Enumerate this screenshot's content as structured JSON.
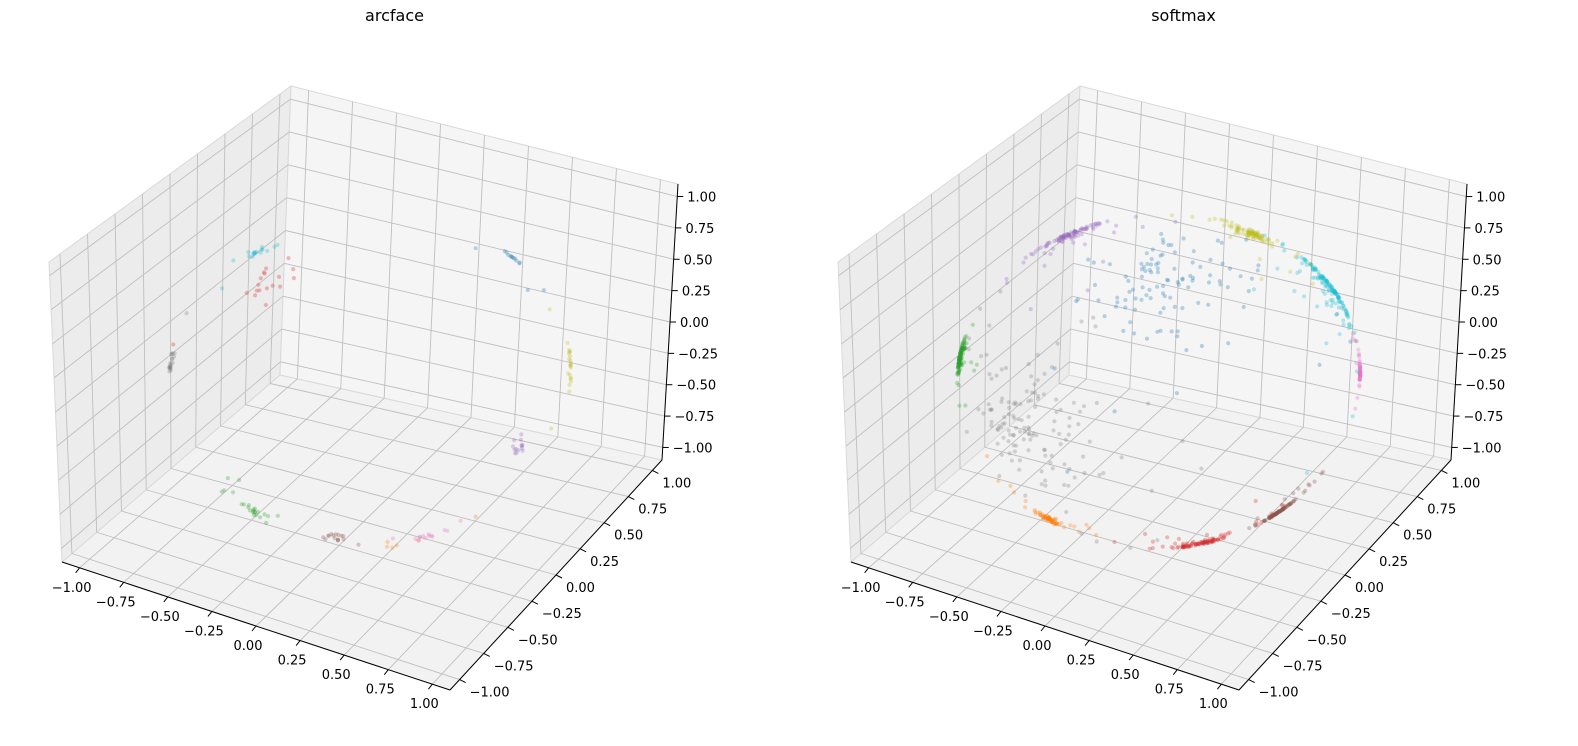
{
  "chart_data": [
    {
      "type": "scatter",
      "projection": "3d",
      "title": "arcface",
      "xlabel": "",
      "ylabel": "",
      "zlabel": "",
      "xlim": [
        -1.1,
        1.1
      ],
      "ylim": [
        -1.1,
        1.1
      ],
      "zlim": [
        -1.1,
        1.1
      ],
      "xticks": [
        "−1.00",
        "−0.75",
        "−0.50",
        "−0.25",
        "0.00",
        "0.25",
        "0.50",
        "0.75",
        "1.00"
      ],
      "yticks": [
        "−1.00",
        "−0.75",
        "−0.50",
        "−0.25",
        "0.00",
        "0.25",
        "0.50",
        "0.75",
        "1.00"
      ],
      "zticks": [
        "−1.00",
        "−0.75",
        "−0.50",
        "−0.25",
        "0.00",
        "0.25",
        "0.50",
        "0.75",
        "1.00"
      ],
      "grid": true,
      "legend": "none",
      "marker_alpha": 0.3,
      "clusters": [
        {
          "color": "#1f77b4",
          "center": [
            0.45,
            0.7,
            0.62
          ],
          "spread": 0.04,
          "count": 14
        },
        {
          "color": "#ff7f0e",
          "center": [
            0.45,
            -0.45,
            -0.9
          ],
          "spread": 0.1,
          "count": 6
        },
        {
          "color": "#2ca02c",
          "center": [
            -0.35,
            -0.5,
            -0.78
          ],
          "spread": 0.05,
          "count": 24
        },
        {
          "color": "#d62728",
          "center": [
            -0.7,
            0.4,
            0.05
          ],
          "spread": 0.05,
          "count": 18
        },
        {
          "color": "#9467bd",
          "center": [
            0.7,
            0.5,
            -0.72
          ],
          "spread": 0.03,
          "count": 14
        },
        {
          "color": "#8c564b",
          "center": [
            0.05,
            -0.35,
            -0.93
          ],
          "spread": 0.04,
          "count": 16
        },
        {
          "color": "#e377c2",
          "center": [
            0.6,
            -0.3,
            -0.95
          ],
          "spread": 0.06,
          "count": 14
        },
        {
          "color": "#7f7f7f",
          "center": [
            -0.75,
            -0.45,
            0.1
          ],
          "spread": 0.05,
          "count": 20
        },
        {
          "color": "#bcbd22",
          "center": [
            0.9,
            0.45,
            0.1
          ],
          "spread": 0.05,
          "count": 22
        },
        {
          "color": "#17becf",
          "center": [
            -0.75,
            0.3,
            0.4
          ],
          "spread": 0.03,
          "count": 18
        }
      ]
    },
    {
      "type": "scatter",
      "projection": "3d",
      "title": "softmax",
      "xlabel": "",
      "ylabel": "",
      "zlabel": "",
      "xlim": [
        -1.1,
        1.1
      ],
      "ylim": [
        -1.1,
        1.1
      ],
      "zlim": [
        -1.1,
        1.1
      ],
      "xticks": [
        "−1.00",
        "−0.75",
        "−0.50",
        "−0.25",
        "0.00",
        "0.25",
        "0.50",
        "0.75",
        "1.00"
      ],
      "yticks": [
        "−1.00",
        "−0.75",
        "−0.50",
        "−0.25",
        "0.00",
        "0.25",
        "0.50",
        "0.75",
        "1.00"
      ],
      "zticks": [
        "−1.00",
        "−0.75",
        "−0.50",
        "−0.25",
        "0.00",
        "0.25",
        "0.50",
        "0.75",
        "1.00"
      ],
      "grid": true,
      "legend": "none",
      "marker_alpha": 0.3,
      "clusters": [
        {
          "color": "#1f77b4",
          "center": [
            -0.2,
            0.4,
            0.0
          ],
          "spread": 0.1,
          "count": 110
        },
        {
          "color": "#ff7f0e",
          "center": [
            -0.35,
            -0.75,
            -0.95
          ],
          "spread": 0.05,
          "count": 70
        },
        {
          "color": "#2ca02c",
          "center": [
            -0.95,
            -0.35,
            0.05
          ],
          "spread": 0.06,
          "count": 110
        },
        {
          "color": "#d62728",
          "center": [
            0.45,
            -0.35,
            -0.75
          ],
          "spread": 0.07,
          "count": 100
        },
        {
          "color": "#9467bd",
          "center": [
            -0.55,
            0.15,
            0.65
          ],
          "spread": 0.07,
          "count": 100
        },
        {
          "color": "#8c564b",
          "center": [
            0.95,
            -0.2,
            -0.7
          ],
          "spread": 0.06,
          "count": 100
        },
        {
          "color": "#e377c2",
          "center": [
            0.95,
            0.5,
            0.05
          ],
          "spread": 0.04,
          "count": 60
        },
        {
          "color": "#7f7f7f",
          "center": [
            -0.45,
            0.0,
            -0.4
          ],
          "spread": 0.12,
          "count": 140
        },
        {
          "color": "#bcbd22",
          "center": [
            0.2,
            0.6,
            0.9
          ],
          "spread": 0.06,
          "count": 100
        },
        {
          "color": "#17becf",
          "center": [
            0.5,
            0.55,
            0.4
          ],
          "spread": 0.1,
          "count": 140
        }
      ]
    }
  ]
}
